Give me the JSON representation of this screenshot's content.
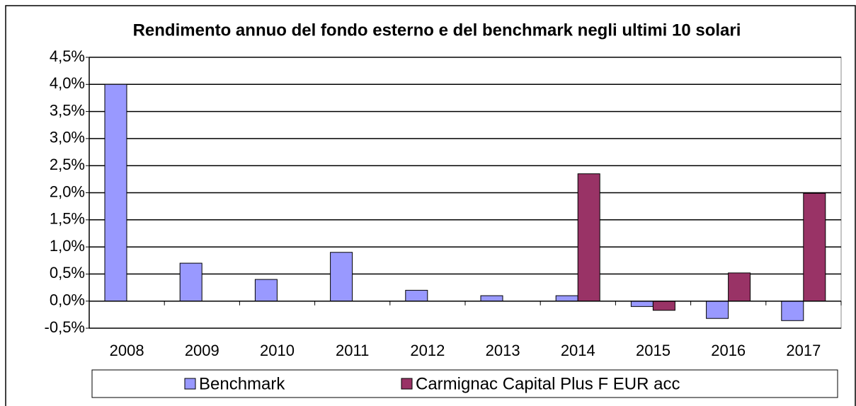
{
  "chart_data": {
    "type": "bar",
    "title": "Rendimento annuo del fondo esterno e del benchmark negli ultimi 10 solari",
    "categories": [
      "2008",
      "2009",
      "2010",
      "2011",
      "2012",
      "2013",
      "2014",
      "2015",
      "2016",
      "2017"
    ],
    "series": [
      {
        "name": "Benchmark",
        "color": "#9999ff",
        "values": [
          4.0,
          0.7,
          0.4,
          0.9,
          0.2,
          0.1,
          0.1,
          -0.1,
          -0.32,
          -0.36
        ]
      },
      {
        "name": "Carmignac Capital Plus F EUR acc",
        "color": "#993366",
        "values": [
          null,
          null,
          null,
          null,
          null,
          null,
          2.35,
          -0.17,
          0.52,
          1.99
        ]
      }
    ],
    "ylim": [
      -0.5,
      4.5
    ],
    "yticks": [
      {
        "value": -0.5,
        "label": "-0,5%"
      },
      {
        "value": 0,
        "label": "0,0%"
      },
      {
        "value": 0.5,
        "label": "0,5%"
      },
      {
        "value": 1,
        "label": "1,0%"
      },
      {
        "value": 1.5,
        "label": "1,5%"
      },
      {
        "value": 2,
        "label": "2,0%"
      },
      {
        "value": 2.5,
        "label": "2,5%"
      },
      {
        "value": 3,
        "label": "3,0%"
      },
      {
        "value": 3.5,
        "label": "3,5%"
      },
      {
        "value": 4,
        "label": "4,0%"
      },
      {
        "value": 4.5,
        "label": "4,5%"
      }
    ],
    "grid": true,
    "legend": "bottom"
  }
}
